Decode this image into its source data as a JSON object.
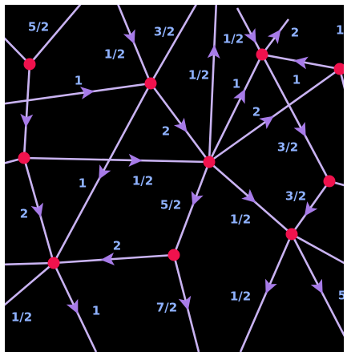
{
  "colors": {
    "background": "#000000",
    "edge": "#c9b3f2",
    "arrow": "#a77be8",
    "node": "#f0124d",
    "label": "#8fb2ff"
  },
  "labels": {
    "l1": "5/2",
    "l2": "1/2",
    "l3": "3/2",
    "l4": "1/2",
    "l5": "2",
    "l6": "1/",
    "l7": "1",
    "l8": "1/2",
    "l9": "1",
    "l10": "1",
    "l11": "2",
    "l12": "2",
    "l13": "3/2",
    "l14": "1",
    "l15": "1/2",
    "l16": "5/2",
    "l17": "3/2",
    "l18": "2",
    "l19": "1/2",
    "l20": "2",
    "l21": "1/2",
    "l22": "1",
    "l23": "7/2",
    "l24": "1/2",
    "l25": "5"
  }
}
